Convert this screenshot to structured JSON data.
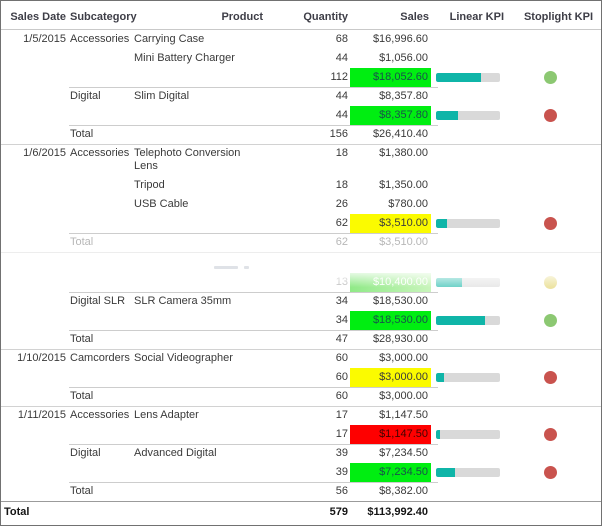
{
  "chart_data": {
    "type": "table",
    "columns": [
      {
        "label": "Sales Date"
      },
      {
        "label": "Subcategory"
      },
      {
        "label": "Product"
      },
      {
        "label": "Quantity"
      },
      {
        "label": "Sales"
      },
      {
        "label": "Linear KPI"
      },
      {
        "label": "Stoplight KPI"
      }
    ],
    "rows": [
      {
        "type": "detail",
        "date": "1/5/2015",
        "subcategory": "Accessories",
        "product": "Carrying Case",
        "quantity": "68",
        "sales": "$16,996.60"
      },
      {
        "type": "detail",
        "product": "Mini Battery Charger",
        "quantity": "44",
        "sales": "$1,056.00"
      },
      {
        "type": "subtotal",
        "quantity": "112",
        "sales": "$18,052.60",
        "cell": "green",
        "kpi": 0.71,
        "dot": "green"
      },
      {
        "type": "detail",
        "subcategory": "Digital",
        "product": "Slim Digital",
        "quantity": "44",
        "sales": "$8,357.80",
        "sep": "sub"
      },
      {
        "type": "subtotal",
        "quantity": "44",
        "sales": "$8,357.80",
        "cell": "green",
        "kpi": 0.35,
        "dot": "red"
      },
      {
        "type": "total",
        "label": "Total",
        "quantity": "156",
        "sales": "$26,410.40",
        "sep": "sub"
      },
      {
        "type": "detail",
        "date": "1/6/2015",
        "subcategory": "Accessories",
        "product": "Telephoto Conversion Lens",
        "quantity": "18",
        "sales": "$1,380.00",
        "sep": "group",
        "wrap": true
      },
      {
        "type": "detail",
        "product": "Tripod",
        "quantity": "18",
        "sales": "$1,350.00"
      },
      {
        "type": "detail",
        "product": "USB Cable",
        "quantity": "26",
        "sales": "$780.00"
      },
      {
        "type": "subtotal",
        "quantity": "62",
        "sales": "$3,510.00",
        "cell": "yellow",
        "kpi": 0.17,
        "dot": "red"
      },
      {
        "type": "total",
        "label": "Total",
        "quantity": "62",
        "sales": "$3,510.00",
        "sep": "sub",
        "faded": true
      },
      {
        "type": "gap"
      },
      {
        "type": "subtotal",
        "quantity": "13",
        "sales": "$10,400.00",
        "cell": "green_fade",
        "kpi": 0.41,
        "dot": "yellow",
        "faded": true
      },
      {
        "type": "detail",
        "subcategory": "Digital SLR",
        "product": "SLR Camera 35mm",
        "quantity": "34",
        "sales": "$18,530.00",
        "sep": "sub"
      },
      {
        "type": "subtotal",
        "quantity": "34",
        "sales": "$18,530.00",
        "cell": "green",
        "kpi": 0.77,
        "dot": "green"
      },
      {
        "type": "total",
        "label": "Total",
        "quantity": "47",
        "sales": "$28,930.00",
        "sep": "sub"
      },
      {
        "type": "detail",
        "date": "1/10/2015",
        "subcategory": "Camcorders",
        "product": "Social Videographer",
        "quantity": "60",
        "sales": "$3,000.00",
        "sep": "group"
      },
      {
        "type": "subtotal",
        "quantity": "60",
        "sales": "$3,000.00",
        "cell": "yellow",
        "kpi": 0.12,
        "dot": "red"
      },
      {
        "type": "total",
        "label": "Total",
        "quantity": "60",
        "sales": "$3,000.00",
        "sep": "sub"
      },
      {
        "type": "detail",
        "date": "1/11/2015",
        "subcategory": "Accessories",
        "product": "Lens Adapter",
        "quantity": "17",
        "sales": "$1,147.50",
        "sep": "group"
      },
      {
        "type": "subtotal",
        "quantity": "17",
        "sales": "$1,147.50",
        "cell": "red",
        "kpi": 0.06,
        "dot": "red"
      },
      {
        "type": "detail",
        "subcategory": "Digital",
        "product": "Advanced Digital",
        "quantity": "39",
        "sales": "$7,234.50",
        "sep": "sub"
      },
      {
        "type": "subtotal",
        "quantity": "39",
        "sales": "$7,234.50",
        "cell": "green",
        "kpi": 0.3,
        "dot": "red"
      },
      {
        "type": "total",
        "label": "Total",
        "quantity": "56",
        "sales": "$8,382.00",
        "sep": "sub"
      },
      {
        "type": "grand",
        "label": "Total",
        "quantity": "579",
        "sales": "$113,992.40"
      }
    ],
    "kpi_colors": {
      "bar_fill": "#0FB5A8",
      "bar_track": "#D9D9D9",
      "bar_fill_faded": "#66CFC5",
      "bar_track_faded": "#E7E7E7",
      "dot_green": "#8CC872",
      "dot_red": "#C9534E",
      "dot_yellow": "#E9DD8D",
      "cell_green": "#00EE11",
      "cell_yellow": "#FBFB00",
      "cell_red": "#FE0000",
      "cell_green_fade_left": "#8AE881",
      "cell_green_fade_right": "#C6F4B8"
    },
    "cell_text_colors": {
      "green": "#17524B",
      "yellow": "#3C3C3C",
      "red": "#420300",
      "green_fade": "rgba(255,255,255,0.95)"
    }
  }
}
